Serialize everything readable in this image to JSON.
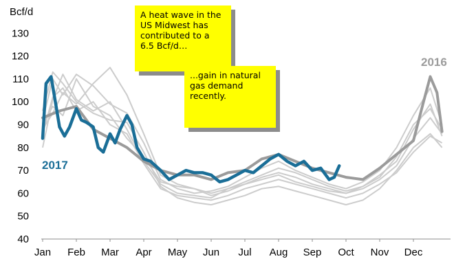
{
  "chart_data": {
    "type": "line",
    "title": "",
    "unit_label": "Bcf/d",
    "xlabel": "",
    "ylabel": "",
    "ylim": [
      40,
      130
    ],
    "yticks": [
      40,
      50,
      60,
      70,
      80,
      90,
      100,
      110,
      120,
      130
    ],
    "months": [
      "Jan",
      "Feb",
      "Mar",
      "Apr",
      "May",
      "Jun",
      "Jul",
      "Aug",
      "Sep",
      "Oct",
      "Nov",
      "Dec"
    ],
    "grid": false,
    "legend": "none",
    "series": [
      {
        "name": "2017",
        "label_text": "2017",
        "color": "#1a6e97",
        "x": [
          0.0,
          0.1,
          0.25,
          0.4,
          0.5,
          0.65,
          0.8,
          1.0,
          1.15,
          1.3,
          1.5,
          1.65,
          1.8,
          2.0,
          2.15,
          2.3,
          2.5,
          2.65,
          2.8,
          3.0,
          3.2,
          3.5,
          3.75,
          4.0,
          4.25,
          4.5,
          4.75,
          5.0,
          5.25,
          5.5,
          5.75,
          6.0,
          6.25,
          6.5,
          6.75,
          7.0,
          7.25,
          7.5,
          7.75,
          8.0,
          8.25,
          8.5,
          8.65,
          8.8
        ],
        "values": [
          84,
          108,
          111,
          98,
          89,
          85,
          89,
          97,
          92,
          91,
          89,
          80,
          78,
          86,
          82,
          88,
          94,
          90,
          80,
          75,
          74,
          70,
          66,
          68,
          70,
          69,
          69,
          68,
          65,
          66,
          68,
          70,
          69,
          72,
          75,
          77,
          74,
          72,
          74,
          70,
          71,
          66,
          67,
          72
        ]
      },
      {
        "name": "2016",
        "label_text": "2016",
        "color": "#9b9b9b",
        "x": [
          0,
          0.5,
          1,
          1.5,
          2,
          2.5,
          3,
          3.5,
          4,
          4.5,
          5,
          5.5,
          6,
          6.5,
          7,
          7.5,
          8,
          8.5,
          9,
          9.5,
          10,
          10.5,
          11,
          11.3,
          11.5,
          11.7,
          11.85
        ],
        "values": [
          93,
          96,
          98,
          88,
          84,
          80,
          74,
          70,
          68,
          68,
          66,
          69,
          70,
          75,
          77,
          74,
          71,
          69,
          67,
          66,
          71,
          77,
          83,
          100,
          111,
          104,
          87
        ]
      },
      {
        "name": "",
        "color": "#cccccc",
        "x": [
          0,
          0.3,
          0.6,
          1,
          1.5,
          2,
          2.5,
          3,
          3.5,
          4,
          4.5,
          5,
          5.5,
          6,
          6.5,
          7,
          7.5,
          8,
          8.5,
          9,
          9.5,
          10,
          10.5,
          11,
          11.5,
          11.85
        ],
        "values": [
          80,
          101,
          112,
          101,
          96,
          100,
          88,
          74,
          64,
          60,
          59,
          58,
          62,
          64,
          66,
          68,
          65,
          63,
          61,
          60,
          63,
          68,
          74,
          88,
          99,
          85
        ]
      },
      {
        "name": "",
        "color": "#cccccc",
        "x": [
          0,
          0.3,
          0.6,
          1,
          1.5,
          2,
          2.5,
          3,
          3.5,
          4,
          4.5,
          5,
          5.5,
          6,
          6.5,
          7,
          7.5,
          8,
          8.5,
          9,
          9.5,
          10,
          10.5,
          11,
          11.5,
          11.85
        ],
        "values": [
          92,
          110,
          103,
          112,
          107,
          99,
          95,
          82,
          66,
          62,
          60,
          61,
          63,
          67,
          71,
          74,
          70,
          67,
          64,
          62,
          65,
          70,
          80,
          94,
          106,
          90
        ]
      },
      {
        "name": "",
        "color": "#cccccc",
        "x": [
          0,
          0.3,
          0.6,
          1,
          1.5,
          2,
          2.5,
          3,
          3.5,
          4,
          4.5,
          5,
          5.5,
          6,
          6.5,
          7,
          7.5,
          8,
          8.5,
          9,
          9.5,
          10,
          10.5,
          11,
          11.5,
          11.85
        ],
        "values": [
          88,
          95,
          104,
          99,
          108,
          115,
          103,
          86,
          68,
          64,
          62,
          59,
          61,
          64,
          67,
          69,
          67,
          64,
          62,
          60,
          62,
          66,
          72,
          84,
          93,
          86
        ]
      },
      {
        "name": "",
        "color": "#cccccc",
        "x": [
          0,
          0.3,
          0.6,
          1,
          1.5,
          2,
          2.5,
          3,
          3.5,
          4,
          4.5,
          5,
          5.5,
          6,
          6.5,
          7,
          7.5,
          8,
          8.5,
          9,
          9.5,
          10,
          10.5,
          11,
          11.5,
          11.85
        ],
        "values": [
          96,
          113,
          108,
          100,
          95,
          92,
          91,
          78,
          63,
          58,
          56,
          55,
          57,
          59,
          62,
          63,
          61,
          59,
          57,
          55,
          57,
          62,
          70,
          80,
          86,
          80
        ]
      },
      {
        "name": "",
        "color": "#cccccc",
        "x": [
          0,
          0.3,
          0.6,
          1,
          1.5,
          2,
          2.5,
          3,
          3.5,
          4,
          4.5,
          5,
          5.5,
          6,
          6.5,
          7,
          7.5,
          8,
          8.5,
          9,
          9.5,
          10,
          10.5,
          11,
          11.5,
          11.85
        ],
        "values": [
          86,
          102,
          106,
          96,
          100,
          90,
          86,
          73,
          62,
          59,
          58,
          57,
          59,
          62,
          64,
          66,
          64,
          62,
          60,
          58,
          60,
          64,
          69,
          78,
          85,
          82
        ]
      },
      {
        "name": "",
        "color": "#cccccc",
        "x": [
          0,
          0.3,
          0.6,
          1,
          1.5,
          2,
          2.5,
          3,
          3.5,
          4,
          4.5,
          5,
          5.5,
          6,
          6.5,
          7,
          7.5,
          8,
          8.5,
          9,
          9.5,
          10,
          10.5,
          11,
          11.5,
          11.85
        ],
        "values": [
          90,
          98,
          94,
          110,
          98,
          94,
          84,
          76,
          65,
          63,
          62,
          60,
          62,
          65,
          68,
          71,
          69,
          66,
          63,
          61,
          63,
          67,
          76,
          90,
          97,
          88
        ]
      }
    ]
  },
  "annotations": [
    {
      "id": "note1",
      "text": "A heat wave in the US Midwest has contributed to a 6.5 Bcf/d…"
    },
    {
      "id": "note2",
      "text": "...gain in natural gas demand recently."
    }
  ]
}
